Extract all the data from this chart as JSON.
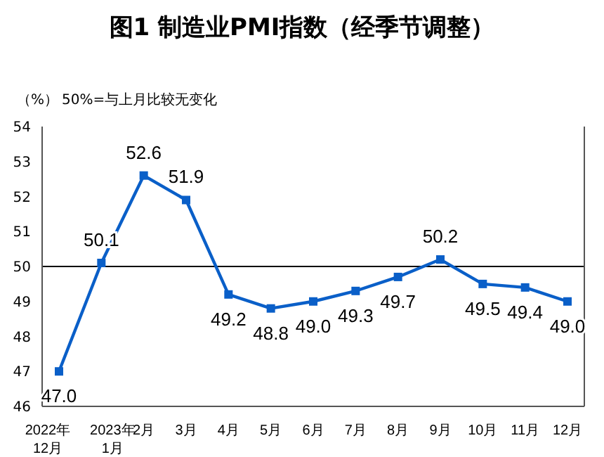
{
  "chart_data": {
    "type": "line",
    "title": "图1 制造业PMI指数（经季节调整）",
    "ylabel": "（%）",
    "annotations": [
      "50%=与上月比较无变化"
    ],
    "categories": [
      "2022年\n12月",
      "2023年\n1月",
      "2月",
      "3月",
      "4月",
      "5月",
      "6月",
      "7月",
      "8月",
      "9月",
      "10月",
      "11月",
      "12月"
    ],
    "series": [
      {
        "color": "#0a5fc8",
        "values": [
          47.0,
          50.1,
          52.6,
          51.9,
          49.2,
          48.8,
          49.0,
          49.3,
          49.7,
          50.2,
          49.5,
          49.4,
          49.0
        ],
        "value_labels": [
          "47.0",
          "50.1",
          "52.6",
          "51.9",
          "49.2",
          "48.8",
          "49.0",
          "49.3",
          "49.7",
          "50.2",
          "49.5",
          "49.4",
          "49.0"
        ]
      }
    ],
    "ylim": [
      46,
      54
    ],
    "yticks": [
      46,
      47,
      48,
      49,
      50,
      51,
      52,
      53,
      54
    ],
    "ref_lines": [
      {
        "axis": "y",
        "value": 50,
        "color": "#000000"
      }
    ],
    "marker": "square",
    "line_style": "solid",
    "grid": false,
    "legend": false
  }
}
